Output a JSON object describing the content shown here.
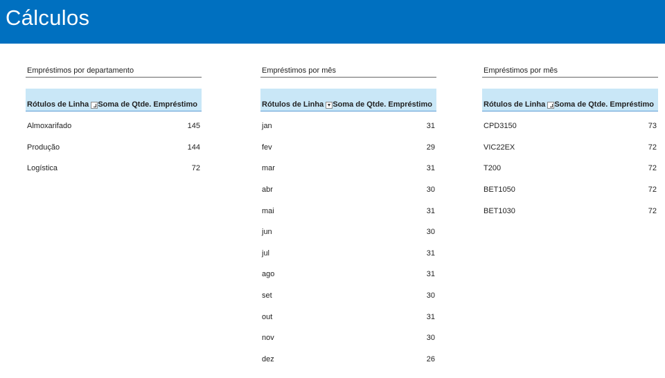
{
  "header": {
    "title": "Cálculos"
  },
  "tables": [
    {
      "title": "Empréstimos por departamento",
      "columns": [
        "Rótulos de Linha",
        "Soma de Qtde. Empréstimo"
      ],
      "rows": [
        [
          "Almoxarifado",
          145
        ],
        [
          "Produção",
          144
        ],
        [
          "Logística",
          72
        ]
      ]
    },
    {
      "title": "Empréstimos por mês",
      "columns": [
        "Rótulos de Linha",
        "Soma de Qtde. Empréstimo"
      ],
      "rows": [
        [
          "jan",
          31
        ],
        [
          "fev",
          29
        ],
        [
          "mar",
          31
        ],
        [
          "abr",
          30
        ],
        [
          "mai",
          31
        ],
        [
          "jun",
          30
        ],
        [
          "jul",
          31
        ],
        [
          "ago",
          31
        ],
        [
          "set",
          30
        ],
        [
          "out",
          31
        ],
        [
          "nov",
          30
        ],
        [
          "dez",
          26
        ]
      ]
    },
    {
      "title": "Empréstimos por mês",
      "columns": [
        "Rótulos de Linha",
        "Soma de Qtde. Empréstimo"
      ],
      "rows": [
        [
          "CPD3150",
          73
        ],
        [
          "VIC22EX",
          72
        ],
        [
          "T200",
          72
        ],
        [
          "BET1050",
          72
        ],
        [
          "BET1030",
          72
        ]
      ]
    }
  ]
}
